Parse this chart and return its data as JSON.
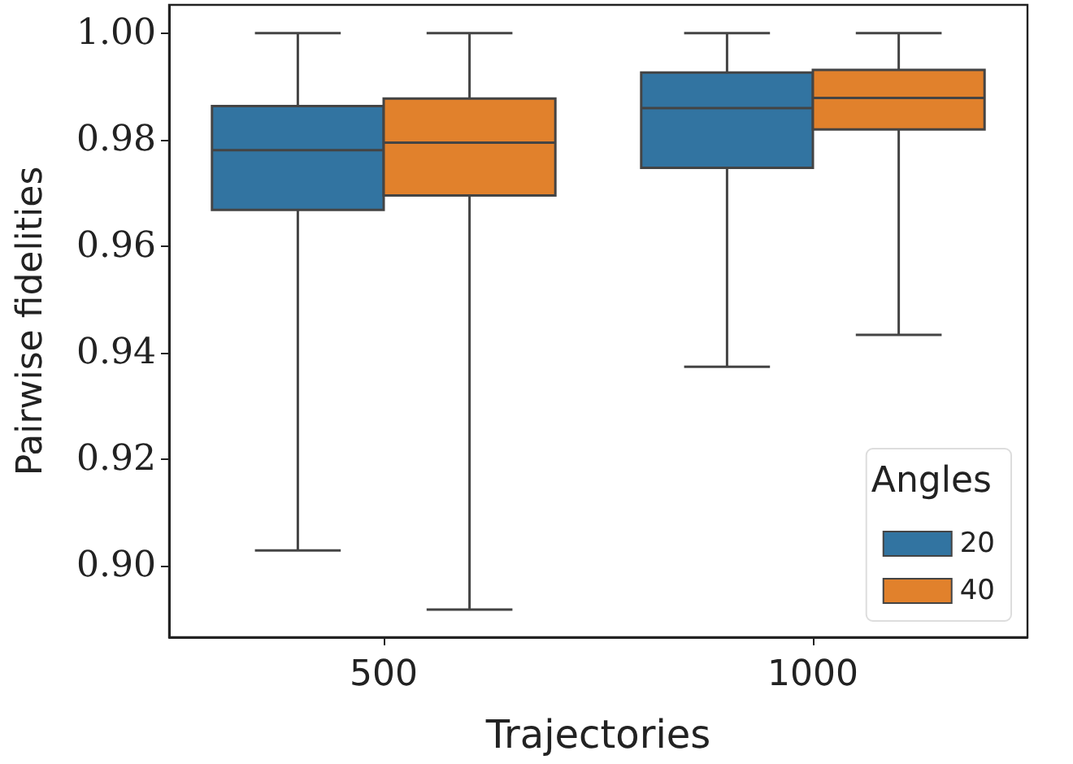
{
  "chart_data": {
    "type": "box",
    "xlabel": "Trajectories",
    "ylabel": "Pairwise fidelities",
    "legend_title": "Angles",
    "legend": "bottom right",
    "grid": false,
    "categories": [
      "500",
      "1000"
    ],
    "ylim": [
      0.8865,
      1.0053
    ],
    "yticks": [
      {
        "value": 0.9,
        "label": "0.90"
      },
      {
        "value": 0.92,
        "label": "0.92"
      },
      {
        "value": 0.94,
        "label": "0.94"
      },
      {
        "value": 0.96,
        "label": "0.96"
      },
      {
        "value": 0.98,
        "label": "0.98"
      },
      {
        "value": 1.0,
        "label": "1.00"
      }
    ],
    "series": [
      {
        "name": "20",
        "color": "#3274a1",
        "boxes": [
          {
            "low": 0.9028,
            "q1": 0.9668,
            "median": 0.978,
            "q3": 0.9863,
            "high": 1.0
          },
          {
            "low": 0.9373,
            "q1": 0.9747,
            "median": 0.9859,
            "q3": 0.9926,
            "high": 1.0
          }
        ]
      },
      {
        "name": "40",
        "color": "#e1812c",
        "boxes": [
          {
            "low": 0.8917,
            "q1": 0.9695,
            "median": 0.9794,
            "q3": 0.9877,
            "high": 1.0
          },
          {
            "low": 0.9433,
            "q1": 0.9819,
            "median": 0.9878,
            "q3": 0.9931,
            "high": 1.0
          }
        ]
      }
    ]
  }
}
